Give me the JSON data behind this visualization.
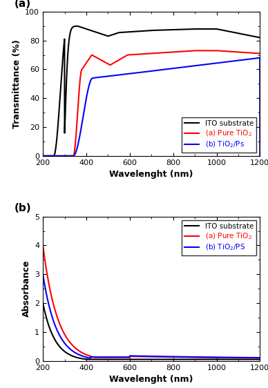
{
  "panel_a_label": "(a)",
  "panel_b_label": "(b)",
  "xlabel": "Wavelenght (nm)",
  "ylabel_a": "Transmittance (%)",
  "ylabel_b": "Absorbance",
  "xlim": [
    200,
    1200
  ],
  "ylim_a": [
    0,
    100
  ],
  "ylim_b": [
    0,
    5
  ],
  "xticks": [
    200,
    400,
    600,
    800,
    1000,
    1200
  ],
  "yticks_a": [
    0,
    20,
    40,
    60,
    80,
    100
  ],
  "yticks_b": [
    0,
    1,
    2,
    3,
    4,
    5
  ],
  "legend_labels_a": [
    "ITO substrate",
    "(a) Pure TiO$_2$",
    "(b) TiO$_2$/Ps"
  ],
  "legend_labels_b": [
    "ITO substrate",
    "(a) Pure TiO$_2$",
    "(b) TiO$_2$/PS"
  ],
  "colors": [
    "black",
    "red",
    "blue"
  ],
  "background_color": "#ffffff",
  "line_width": 1.5
}
